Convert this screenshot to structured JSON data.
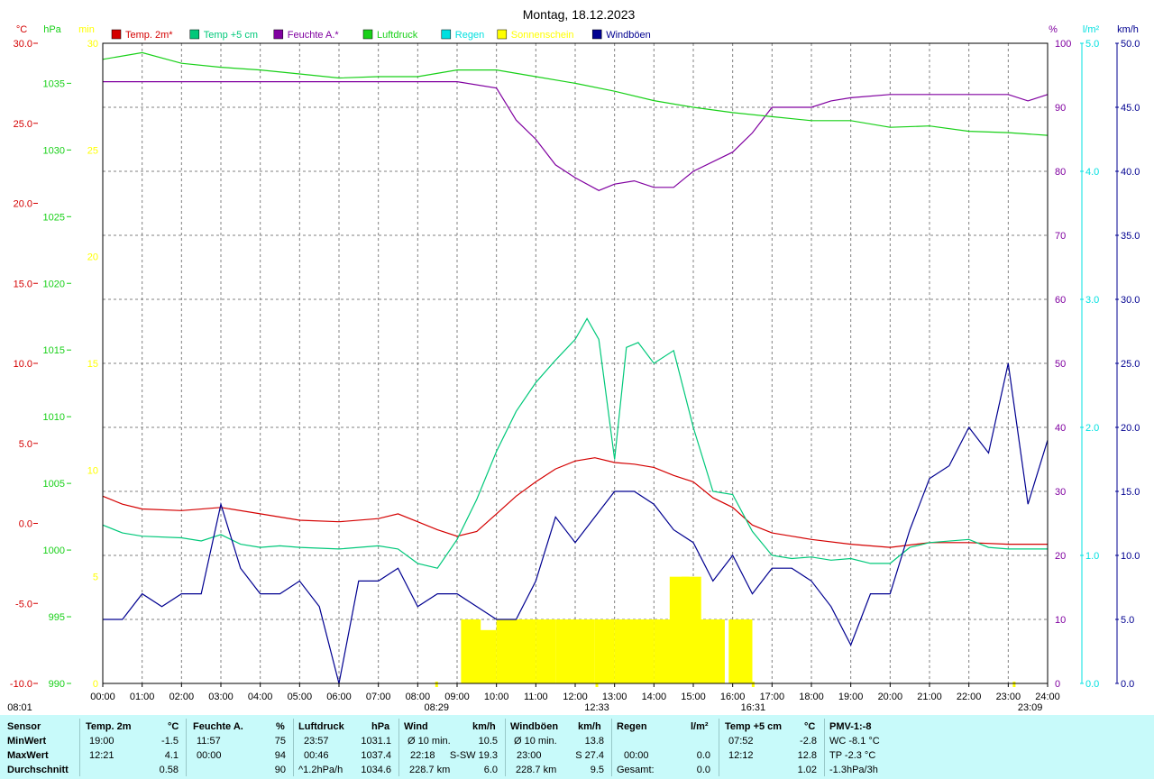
{
  "title": "Montag, 18.12.2023",
  "colors": {
    "temp2m": "#d40000",
    "temp5cm": "#00c87a",
    "humidity": "#8000a0",
    "pressure": "#18d018",
    "rain": "#00e0e0",
    "sun": "#ffff00",
    "gust": "#000090",
    "background": "#ffffff",
    "footer": "#c8fafa"
  },
  "axes": {
    "temp": {
      "unit": "°C",
      "min": -10,
      "max": 30,
      "ticks": [
        "30.0",
        "25.0",
        "20.0",
        "15.0",
        "10.0",
        "5.0",
        "0.0",
        "-5.0",
        "-10.0"
      ]
    },
    "pressure": {
      "unit": "hPa",
      "min": 990,
      "max": 1038,
      "ticks": [
        "1035",
        "1030",
        "1025",
        "1020",
        "1015",
        "1010",
        "1005",
        "1000",
        "995",
        "990"
      ]
    },
    "sunshine": {
      "unit": "min",
      "min": 0,
      "max": 30,
      "ticks": [
        "30",
        "25",
        "20",
        "15",
        "10",
        "5",
        "0"
      ]
    },
    "humidity": {
      "unit": "%",
      "min": 0,
      "max": 100,
      "ticks": [
        "100",
        "90",
        "80",
        "70",
        "60",
        "50",
        "40",
        "30",
        "20",
        "10",
        "0"
      ]
    },
    "rain": {
      "unit": "l/m²",
      "min": 0,
      "max": 5,
      "ticks": [
        "5.0",
        "4.0",
        "3.0",
        "2.0",
        "1.0",
        "0.0"
      ]
    },
    "wind": {
      "unit": "km/h",
      "min": 0,
      "max": 50,
      "ticks": [
        "50.0",
        "45.0",
        "40.0",
        "35.0",
        "30.0",
        "25.0",
        "20.0",
        "15.0",
        "10.0",
        "5.0",
        "0.0"
      ]
    },
    "x_ticks": [
      "00:00",
      "01:00",
      "02:00",
      "03:00",
      "04:00",
      "05:00",
      "06:00",
      "07:00",
      "08:00",
      "09:00",
      "10:00",
      "11:00",
      "12:00",
      "13:00",
      "14:00",
      "15:00",
      "16:00",
      "17:00",
      "18:00",
      "19:00",
      "20:00",
      "21:00",
      "22:00",
      "23:00",
      "24:00"
    ],
    "x_markers": [
      {
        "label": "08:01",
        "hour": 0
      },
      {
        "label": "08:29",
        "hour": 8.48
      },
      {
        "label": "12:33",
        "hour": 12.55
      },
      {
        "label": "16:31",
        "hour": 16.52
      },
      {
        "label": "23:09",
        "hour": 23.15
      }
    ]
  },
  "legend": [
    {
      "key": "temp2m",
      "label": "Temp. 2m*"
    },
    {
      "key": "temp5cm",
      "label": "Temp +5 cm"
    },
    {
      "key": "humidity",
      "label": "Feuchte A.*"
    },
    {
      "key": "pressure",
      "label": "Luftdruck"
    },
    {
      "key": "rain",
      "label": "Regen"
    },
    {
      "key": "sun",
      "label": "Sonnenschein"
    },
    {
      "key": "gust",
      "label": "Windböen"
    }
  ],
  "chart_data": {
    "type": "line",
    "x_unit": "hour",
    "series": [
      {
        "name": "Temp. 2m*",
        "axis": "temp",
        "points": [
          [
            0,
            1.7
          ],
          [
            0.5,
            1.2
          ],
          [
            1,
            0.9
          ],
          [
            2,
            0.8
          ],
          [
            3,
            1.0
          ],
          [
            4,
            0.6
          ],
          [
            5,
            0.2
          ],
          [
            6,
            0.1
          ],
          [
            7,
            0.3
          ],
          [
            7.5,
            0.6
          ],
          [
            8,
            0.1
          ],
          [
            8.5,
            -0.4
          ],
          [
            9,
            -0.8
          ],
          [
            9.5,
            -0.5
          ],
          [
            10,
            0.6
          ],
          [
            10.5,
            1.7
          ],
          [
            11,
            2.6
          ],
          [
            11.5,
            3.4
          ],
          [
            12,
            3.9
          ],
          [
            12.5,
            4.1
          ],
          [
            13,
            3.8
          ],
          [
            13.5,
            3.7
          ],
          [
            14,
            3.5
          ],
          [
            14.5,
            3.0
          ],
          [
            15,
            2.6
          ],
          [
            15.5,
            1.6
          ],
          [
            16,
            1.0
          ],
          [
            16.5,
            -0.1
          ],
          [
            17,
            -0.6
          ],
          [
            17.5,
            -0.8
          ],
          [
            18,
            -1.0
          ],
          [
            19,
            -1.3
          ],
          [
            20,
            -1.5
          ],
          [
            21,
            -1.2
          ],
          [
            22,
            -1.2
          ],
          [
            23,
            -1.3
          ],
          [
            24,
            -1.3
          ]
        ]
      },
      {
        "name": "Temp +5 cm",
        "axis": "temp",
        "points": [
          [
            0,
            -0.1
          ],
          [
            0.5,
            -0.6
          ],
          [
            1,
            -0.8
          ],
          [
            2,
            -0.9
          ],
          [
            2.5,
            -1.1
          ],
          [
            3,
            -0.7
          ],
          [
            3.5,
            -1.3
          ],
          [
            4,
            -1.5
          ],
          [
            4.5,
            -1.4
          ],
          [
            5,
            -1.5
          ],
          [
            6,
            -1.6
          ],
          [
            7,
            -1.4
          ],
          [
            7.5,
            -1.6
          ],
          [
            8,
            -2.5
          ],
          [
            8.5,
            -2.8
          ],
          [
            9,
            -1.0
          ],
          [
            9.5,
            1.5
          ],
          [
            10,
            4.5
          ],
          [
            10.5,
            7.0
          ],
          [
            11,
            8.8
          ],
          [
            11.5,
            10.2
          ],
          [
            12,
            11.5
          ],
          [
            12.3,
            12.8
          ],
          [
            12.6,
            11.5
          ],
          [
            13,
            4.0
          ],
          [
            13.3,
            11.0
          ],
          [
            13.6,
            11.3
          ],
          [
            14,
            10.0
          ],
          [
            14.5,
            10.8
          ],
          [
            15,
            6.0
          ],
          [
            15.5,
            2.0
          ],
          [
            16,
            1.8
          ],
          [
            16.5,
            -0.5
          ],
          [
            17,
            -2.0
          ],
          [
            17.5,
            -2.2
          ],
          [
            18,
            -2.1
          ],
          [
            18.5,
            -2.3
          ],
          [
            19,
            -2.2
          ],
          [
            19.5,
            -2.5
          ],
          [
            20,
            -2.5
          ],
          [
            20.5,
            -1.5
          ],
          [
            21,
            -1.2
          ],
          [
            22,
            -1.0
          ],
          [
            22.5,
            -1.5
          ],
          [
            23,
            -1.6
          ],
          [
            24,
            -1.6
          ]
        ]
      },
      {
        "name": "Feuchte A.*",
        "axis": "humidity",
        "points": [
          [
            0,
            94
          ],
          [
            8,
            94
          ],
          [
            9,
            94
          ],
          [
            10,
            93
          ],
          [
            10.5,
            88
          ],
          [
            11,
            85
          ],
          [
            11.5,
            81
          ],
          [
            12,
            79
          ],
          [
            12.6,
            77
          ],
          [
            13,
            78
          ],
          [
            13.5,
            78.5
          ],
          [
            14,
            77.5
          ],
          [
            14.5,
            77.5
          ],
          [
            15,
            80
          ],
          [
            16,
            83
          ],
          [
            16.5,
            86
          ],
          [
            17,
            90
          ],
          [
            18,
            90
          ],
          [
            18.5,
            91
          ],
          [
            19,
            91.5
          ],
          [
            20,
            92
          ],
          [
            21,
            92
          ],
          [
            22,
            92
          ],
          [
            23,
            92
          ],
          [
            23.5,
            91
          ],
          [
            24,
            92
          ]
        ]
      },
      {
        "name": "Luftdruck",
        "axis": "pressure",
        "points": [
          [
            0,
            1036.8
          ],
          [
            1,
            1037.3
          ],
          [
            2,
            1036.5
          ],
          [
            3,
            1036.2
          ],
          [
            4,
            1036.0
          ],
          [
            5,
            1035.7
          ],
          [
            6,
            1035.4
          ],
          [
            7,
            1035.5
          ],
          [
            8,
            1035.5
          ],
          [
            9,
            1036.0
          ],
          [
            10,
            1036.0
          ],
          [
            11,
            1035.5
          ],
          [
            12,
            1035.0
          ],
          [
            13,
            1034.4
          ],
          [
            14,
            1033.7
          ],
          [
            15,
            1033.2
          ],
          [
            16,
            1032.8
          ],
          [
            17,
            1032.5
          ],
          [
            18,
            1032.2
          ],
          [
            19,
            1032.2
          ],
          [
            20,
            1031.7
          ],
          [
            21,
            1031.8
          ],
          [
            22,
            1031.4
          ],
          [
            23,
            1031.3
          ],
          [
            24,
            1031.1
          ]
        ]
      },
      {
        "name": "Windböen",
        "axis": "wind",
        "points": [
          [
            0,
            5
          ],
          [
            0.5,
            5
          ],
          [
            1,
            7
          ],
          [
            1.5,
            6
          ],
          [
            2,
            7
          ],
          [
            2.5,
            7
          ],
          [
            3,
            14
          ],
          [
            3.5,
            9
          ],
          [
            4,
            7
          ],
          [
            4.5,
            7
          ],
          [
            5,
            8
          ],
          [
            5.5,
            6
          ],
          [
            6,
            0
          ],
          [
            6.5,
            8
          ],
          [
            7,
            8
          ],
          [
            7.5,
            9
          ],
          [
            8,
            6
          ],
          [
            8.5,
            7
          ],
          [
            9,
            7
          ],
          [
            9.5,
            6
          ],
          [
            10,
            5
          ],
          [
            10.5,
            5
          ],
          [
            11,
            8
          ],
          [
            11.5,
            13
          ],
          [
            12,
            11
          ],
          [
            12.5,
            13
          ],
          [
            13,
            15
          ],
          [
            13.5,
            15
          ],
          [
            14,
            14
          ],
          [
            14.5,
            12
          ],
          [
            15,
            11
          ],
          [
            15.5,
            8
          ],
          [
            16,
            10
          ],
          [
            16.5,
            7
          ],
          [
            17,
            9
          ],
          [
            17.5,
            9
          ],
          [
            18,
            8
          ],
          [
            18.5,
            6
          ],
          [
            19,
            3
          ],
          [
            19.5,
            7
          ],
          [
            20,
            7
          ],
          [
            20.5,
            12
          ],
          [
            21,
            16
          ],
          [
            21.5,
            17
          ],
          [
            22,
            20
          ],
          [
            22.5,
            18
          ],
          [
            23,
            25
          ],
          [
            23.5,
            14
          ],
          [
            24,
            19
          ]
        ]
      },
      {
        "name": "Sonnenschein",
        "axis": "sunshine",
        "type": "bar",
        "points": [
          [
            9.1,
            3
          ],
          [
            9.5,
            2.5
          ],
          [
            10,
            3
          ],
          [
            10.5,
            3
          ],
          [
            11,
            3
          ],
          [
            11.5,
            3
          ],
          [
            12,
            3
          ],
          [
            12.5,
            3
          ],
          [
            13,
            3
          ],
          [
            13.5,
            3
          ],
          [
            14,
            3
          ],
          [
            14.4,
            5
          ],
          [
            14.7,
            5
          ],
          [
            15,
            3
          ],
          [
            15.3,
            3
          ],
          [
            15.9,
            3
          ],
          [
            16,
            3
          ]
        ]
      },
      {
        "name": "Regen",
        "axis": "rain",
        "points": []
      }
    ]
  },
  "stats": {
    "headers": {
      "sensor": "Sensor",
      "temp2m": "Temp. 2m",
      "temp2m_unit": "°C",
      "hum": "Feuchte A.",
      "hum_unit": "%",
      "press": "Luftdruck",
      "press_unit": "hPa",
      "wind": "Wind",
      "wind_unit": "km/h",
      "gust": "Windböen",
      "gust_unit": "km/h",
      "rain": "Regen",
      "rain_unit": "l/m²",
      "temp5": "Temp +5 cm",
      "temp5_unit": "°C",
      "pmv": "PMV-1:-8"
    },
    "rows": [
      {
        "label": "MinWert",
        "t2m_time": "19:00",
        "t2m_val": "-1.5",
        "hum_time": "11:57",
        "hum_val": "75",
        "press_time": "23:57",
        "press_val": "1031.1",
        "wind_label": "Ø 10 min.",
        "wind_val": "10.5",
        "gust_label": "Ø 10 min.",
        "gust_val": "13.8",
        "rain_time": "",
        "rain_val": "",
        "t5_time": "07:52",
        "t5_val": "-2.8",
        "pmv": "WC -8.1 °C"
      },
      {
        "label": "MaxWert",
        "t2m_time": "12:21",
        "t2m_val": "4.1",
        "hum_time": "00:00",
        "hum_val": "94",
        "press_time": "00:46",
        "press_val": "1037.4",
        "wind_label": "22:18",
        "wind_dir": "S-SW 19.3",
        "wind_val": "",
        "gust_label": "23:00",
        "gust_val": "S 27.4",
        "rain_time": "00:00",
        "rain_val": "0.0",
        "t5_time": "12:12",
        "t5_val": "12.8",
        "pmv": "TP -2.3 °C"
      },
      {
        "label": "Durchschnitt",
        "t2m_time": "",
        "t2m_val": "0.58",
        "hum_time": "",
        "hum_val": "90",
        "press_time": "^1.2hPa/h",
        "press_val": "1034.6",
        "wind_label": "228.7 km",
        "wind_val": "6.0",
        "gust_label": "228.7 km",
        "gust_val": "9.5",
        "rain_time": "Gesamt:",
        "rain_val": "0.0",
        "t5_time": "",
        "t5_val": "1.02",
        "pmv": "-1.3hPa/3h"
      }
    ]
  }
}
